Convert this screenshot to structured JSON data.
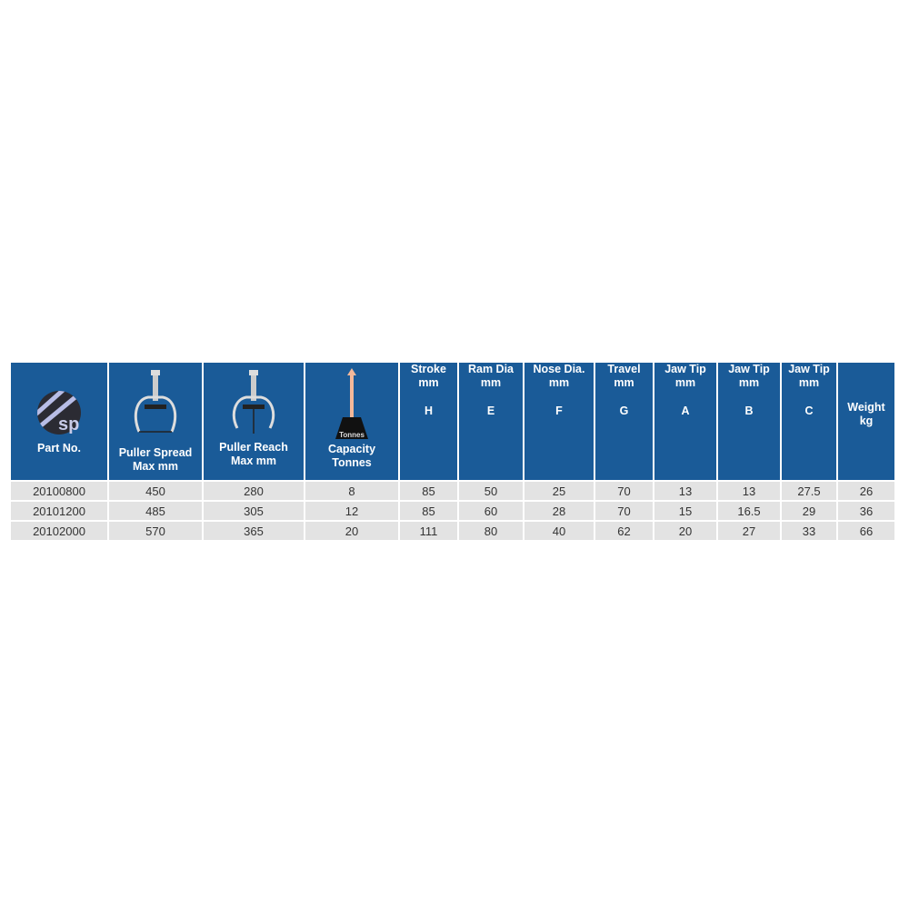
{
  "colors": {
    "header_bg": "#1a5b98",
    "row_bg": "#e3e3e3",
    "header_text": "#ffffff"
  },
  "header": {
    "part_no": "Part No.",
    "logo_text": "sp",
    "spread": {
      "l1": "Puller Spread",
      "l2": "Max mm",
      "icon": "puller-spread-icon"
    },
    "reach": {
      "l1": "Puller Reach",
      "l2": "Max mm",
      "icon": "puller-reach-icon"
    },
    "capacity": {
      "l1": "Capacity",
      "l2": "Tonnes",
      "icon_label": "Tonnes",
      "icon": "weight-arrow-icon"
    },
    "cols": [
      {
        "l1": "Stroke",
        "l2": "mm",
        "l3": "H"
      },
      {
        "l1": "Ram Dia",
        "l2": "mm",
        "l3": "E"
      },
      {
        "l1": "Nose Dia.",
        "l2": "mm",
        "l3": "F"
      },
      {
        "l1": "Travel",
        "l2": "mm",
        "l3": "G"
      },
      {
        "l1": "Jaw Tip",
        "l2": "mm",
        "l3": "A"
      },
      {
        "l1": "Jaw Tip",
        "l2": "mm",
        "l3": "B"
      },
      {
        "l1": "Jaw Tip",
        "l2": "mm",
        "l3": "C"
      },
      {
        "l1": "Weight",
        "l2": "kg",
        "l3": ""
      }
    ]
  },
  "rows": [
    [
      "20100800",
      "450",
      "280",
      "8",
      "85",
      "50",
      "25",
      "70",
      "13",
      "13",
      "27.5",
      "26"
    ],
    [
      "20101200",
      "485",
      "305",
      "12",
      "85",
      "60",
      "28",
      "70",
      "15",
      "16.5",
      "29",
      "36"
    ],
    [
      "20102000",
      "570",
      "365",
      "20",
      "111",
      "80",
      "40",
      "62",
      "20",
      "27",
      "33",
      "66"
    ]
  ]
}
